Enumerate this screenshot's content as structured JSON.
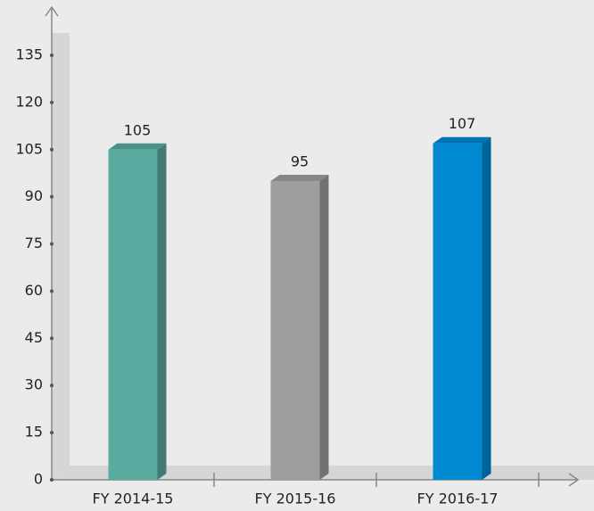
{
  "chart_data": {
    "type": "bar",
    "categories": [
      "FY 2014-15",
      "FY 2015-16",
      "FY 2016-17"
    ],
    "values": [
      105,
      95,
      107
    ],
    "colors": [
      "#5aaba0",
      "#9d9e9d",
      "#0088d1"
    ],
    "ylim": [
      0,
      135
    ],
    "yticks": [
      0,
      15,
      30,
      45,
      60,
      75,
      90,
      105,
      120,
      135
    ]
  }
}
